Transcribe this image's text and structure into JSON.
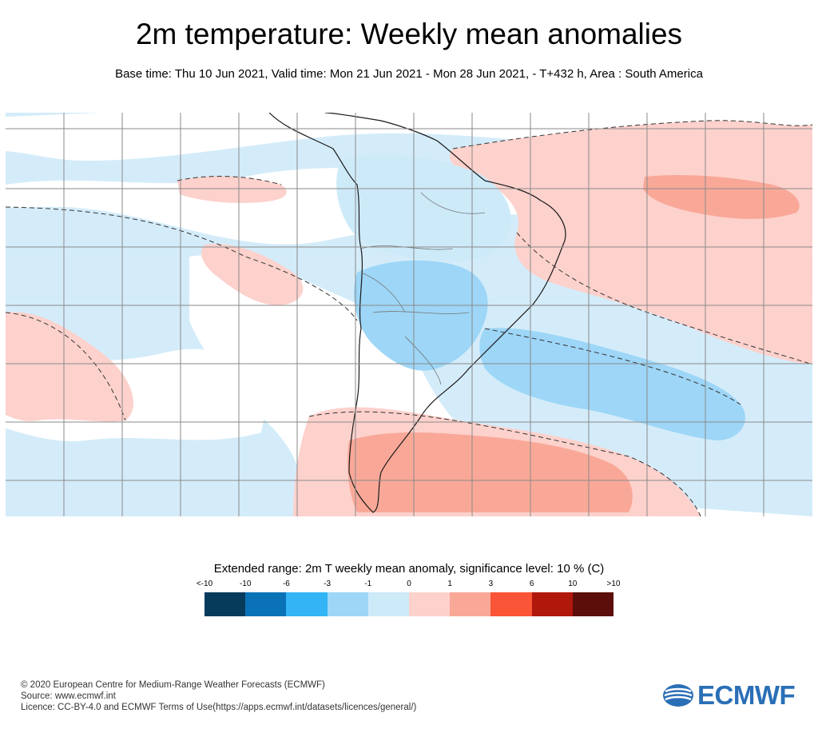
{
  "header": {
    "title": "2m temperature: Weekly mean anomalies",
    "subtitle": "Base time: Thu 10 Jun 2021, Valid time: Mon 21 Jun 2021 - Mon 28 Jun 2021, - T+432 h, Area : South America"
  },
  "map": {
    "region": "South America",
    "colors": {
      "ocean_base": "#d4ecfa",
      "neutral": "#ffffff",
      "cool_1": "#cdeaf9",
      "cool_2": "#9dd6f7",
      "warm_1": "#fdd1cc",
      "warm_2": "#f9a898",
      "grid": "#8a8a8a",
      "coast": "#1a1a1a",
      "border": "#777777"
    }
  },
  "legend": {
    "title": "Extended range: 2m T weekly mean anomaly, significance level: 10 % (C)",
    "ticks": [
      "<-10",
      "-10",
      "-6",
      "-3",
      "-1",
      "0",
      "1",
      "3",
      "6",
      "10",
      ">10"
    ],
    "colors": [
      "#063b5c",
      "#0a72b6",
      "#33b5f5",
      "#9dd6f7",
      "#cdeaf9",
      "#fdd1cc",
      "#f9a898",
      "#fa5536",
      "#b0180c",
      "#5c0f0a"
    ]
  },
  "footer": {
    "copyright": "© 2020 European Centre for Medium-Range Weather Forecasts (ECMWF)",
    "source": "Source: www.ecmwf.int",
    "licence": "Licence: CC-BY-4.0 and ECMWF Terms of Use(https://apps.ecmwf.int/datasets/licences/general/)"
  },
  "logo": {
    "text": "ECMWF"
  }
}
